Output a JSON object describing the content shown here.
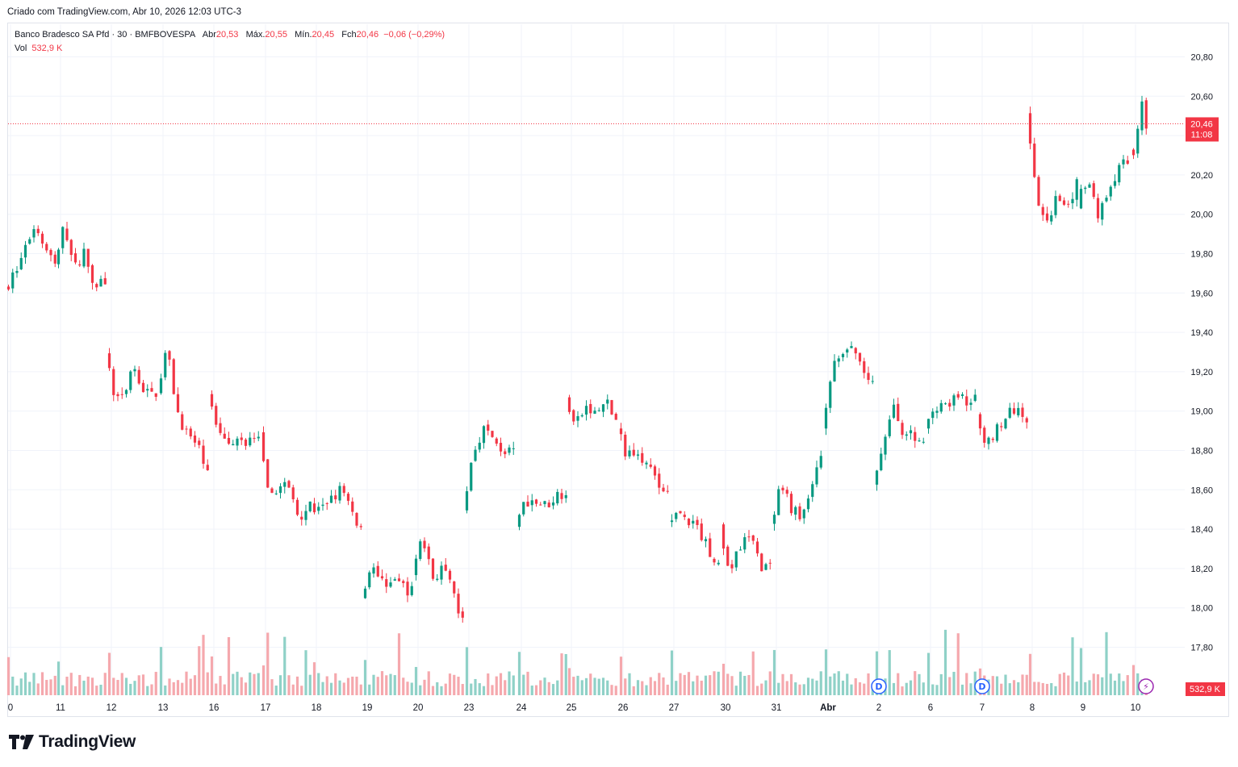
{
  "header": {
    "created_by": "Criado com TradingView.com, Abr 10, 2026 12:03 UTC-3"
  },
  "legend": {
    "symbol": "Banco Bradesco SA Pfd · 30 · BMFBOVESPA",
    "open_label": "Abr",
    "open_value": "20,53",
    "high_label": "Máx.",
    "high_value": "20,55",
    "low_label": "Mín.",
    "low_value": "20,45",
    "close_label": "Fch",
    "close_value": "20,46",
    "change": "−0,06 (−0,29%)",
    "vol_label": "Vol",
    "vol_value": "532,9 K"
  },
  "price_tag": {
    "price": "20,46",
    "countdown": "11:08"
  },
  "volume_tag": "532,9 K",
  "footer": {
    "brand": "TradingView"
  },
  "colors": {
    "up": "#089981",
    "down": "#f23645",
    "up_vol": "#8fd1c7",
    "down_vol": "#f5a8ad",
    "grid": "#f0f3fa"
  },
  "chart_data": {
    "type": "candlestick",
    "timeframe": "30",
    "y_ticks": [
      "20,80",
      "20,60",
      "20,40",
      "20,20",
      "20,00",
      "19,80",
      "19,60",
      "19,40",
      "19,20",
      "19,00",
      "18,80",
      "18,60",
      "18,40",
      "18,20",
      "18,00",
      "17,80"
    ],
    "ylim": [
      17.6,
      20.9
    ],
    "last_price": 20.46,
    "x_tick_labels": [
      "0",
      "11",
      "12",
      "13",
      "16",
      "17",
      "18",
      "19",
      "20",
      "23",
      "24",
      "25",
      "26",
      "27",
      "30",
      "31",
      "Abr",
      "2",
      "6",
      "7",
      "8",
      "9",
      "10"
    ],
    "days": [
      {
        "label": "0",
        "points": [
          19.62,
          19.7,
          19.82,
          19.95,
          19.86,
          19.74
        ]
      },
      {
        "label": "11",
        "points": [
          19.74,
          19.95,
          19.72,
          19.82,
          19.64,
          19.67
        ]
      },
      {
        "label": "12",
        "points": [
          19.28,
          19.05,
          19.12,
          19.22,
          19.08,
          19.1
        ]
      },
      {
        "label": "13",
        "points": [
          19.1,
          19.32,
          19.0,
          18.88,
          18.82,
          18.72
        ]
      },
      {
        "label": "16",
        "points": [
          19.08,
          18.92,
          18.87,
          18.84,
          18.86,
          18.84
        ]
      },
      {
        "label": "17",
        "points": [
          18.88,
          18.52,
          18.65,
          18.6,
          18.47,
          18.53
        ]
      },
      {
        "label": "18",
        "points": [
          18.52,
          18.48,
          18.57,
          18.6,
          18.5,
          18.4
        ]
      },
      {
        "label": "19",
        "points": [
          18.05,
          18.24,
          18.12,
          18.15,
          18.12,
          18.08
        ]
      },
      {
        "label": "20",
        "points": [
          18.18,
          18.36,
          18.15,
          18.2,
          18.08,
          17.92
        ]
      },
      {
        "label": "23",
        "points": [
          18.5,
          18.78,
          18.92,
          18.85,
          18.8,
          18.78
        ]
      },
      {
        "label": "24",
        "points": [
          18.4,
          18.55,
          18.54,
          18.52,
          18.57,
          18.6
        ]
      },
      {
        "label": "25",
        "points": [
          19.08,
          18.92,
          19.02,
          18.98,
          19.05,
          18.95
        ]
      },
      {
        "label": "26",
        "points": [
          18.9,
          18.78,
          18.82,
          18.72,
          18.62,
          18.6
        ]
      },
      {
        "label": "27",
        "points": [
          18.45,
          18.48,
          18.44,
          18.4,
          18.3,
          18.22
        ]
      },
      {
        "label": "30",
        "points": [
          18.42,
          18.18,
          18.3,
          18.38,
          18.22,
          18.2
        ]
      },
      {
        "label": "31",
        "points": [
          18.42,
          18.6,
          18.52,
          18.45,
          18.6,
          18.8
        ]
      },
      {
        "label": "Abr",
        "points": [
          18.9,
          19.22,
          19.28,
          19.32,
          19.22,
          19.12
        ]
      },
      {
        "label": "2",
        "points": [
          18.62,
          18.8,
          19.02,
          18.9,
          18.86,
          18.85
        ]
      },
      {
        "label": "6",
        "points": [
          18.9,
          19.03,
          19.05,
          19.05,
          19.06,
          19.05
        ]
      },
      {
        "label": "7",
        "points": [
          18.98,
          18.82,
          18.92,
          18.97,
          19.02,
          18.97
        ]
      },
      {
        "label": "8",
        "points": [
          20.5,
          20.1,
          19.92,
          20.12,
          20.05,
          20.15
        ]
      },
      {
        "label": "9",
        "points": [
          20.02,
          20.2,
          20.0,
          20.1,
          20.22,
          20.28
        ]
      },
      {
        "label": "10",
        "points": [
          20.32,
          20.28,
          20.42,
          20.58,
          20.46
        ]
      }
    ],
    "volume_max": 220000
  }
}
